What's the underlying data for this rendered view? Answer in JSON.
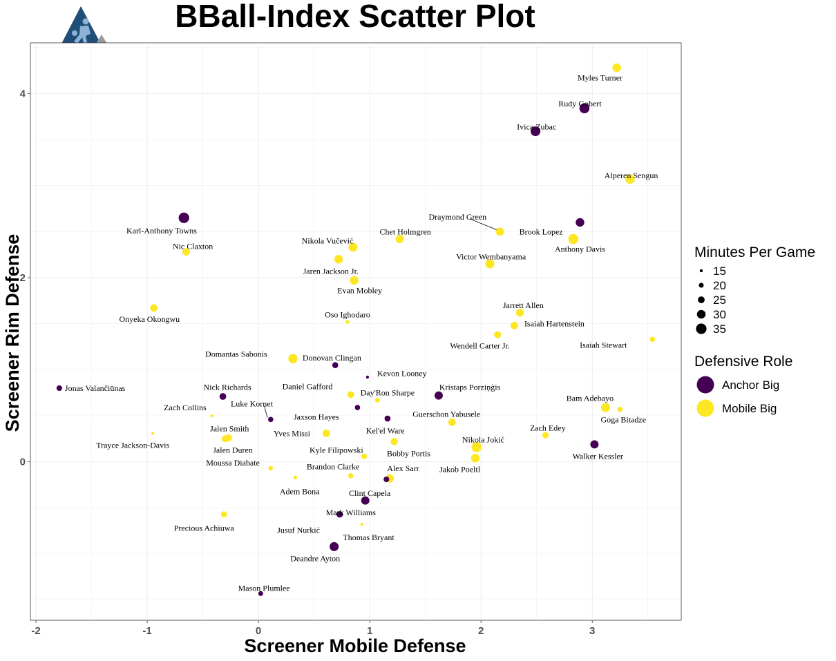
{
  "chart_data": {
    "type": "scatter",
    "title": "BBall-Index Scatter Plot",
    "xlabel": "Screener Mobile Defense",
    "ylabel": "Screener Rim Defense",
    "xlim": [
      -2.05,
      3.8
    ],
    "ylim": [
      -1.72,
      4.55
    ],
    "x_ticks": [
      -2,
      -1,
      0,
      1,
      2,
      3
    ],
    "y_ticks": [
      0,
      2,
      4
    ],
    "grid": true,
    "legend_position": "right",
    "colors": {
      "Anchor Big": "#440154",
      "Mobile Big": "#fde725"
    },
    "size_legend": {
      "title": "Minutes Per Game",
      "values": [
        15,
        20,
        25,
        30,
        35
      ]
    },
    "color_legend": {
      "title": "Defensive Role",
      "entries": [
        "Anchor Big",
        "Mobile Big"
      ]
    },
    "points": [
      {
        "name": "Myles Turner",
        "x": 3.22,
        "y": 4.28,
        "role": "Mobile Big",
        "mpg": 30
      },
      {
        "name": "Rudy Gobert",
        "x": 2.93,
        "y": 3.84,
        "role": "Anchor Big",
        "mpg": 34
      },
      {
        "name": "Ivica Zubac",
        "x": 2.49,
        "y": 3.59,
        "role": "Anchor Big",
        "mpg": 33
      },
      {
        "name": "Alperen Sengun",
        "x": 3.34,
        "y": 3.07,
        "role": "Mobile Big",
        "mpg": 32
      },
      {
        "name": "Karl-Anthony Towns",
        "x": -0.67,
        "y": 2.65,
        "role": "Anchor Big",
        "mpg": 35
      },
      {
        "name": "Brook Lopez",
        "x": 2.89,
        "y": 2.6,
        "role": "Anchor Big",
        "mpg": 30
      },
      {
        "name": "Draymond Green",
        "x": 2.17,
        "y": 2.5,
        "role": "Mobile Big",
        "mpg": 29
      },
      {
        "name": "Anthony Davis",
        "x": 2.83,
        "y": 2.42,
        "role": "Mobile Big",
        "mpg": 34
      },
      {
        "name": "Chet Holmgren",
        "x": 1.27,
        "y": 2.42,
        "role": "Mobile Big",
        "mpg": 29
      },
      {
        "name": "Nikola Vučević",
        "x": 0.85,
        "y": 2.33,
        "role": "Mobile Big",
        "mpg": 31
      },
      {
        "name": "Nic Claxton",
        "x": -0.65,
        "y": 2.28,
        "role": "Mobile Big",
        "mpg": 27
      },
      {
        "name": "Jaren Jackson Jr.",
        "x": 0.72,
        "y": 2.2,
        "role": "Mobile Big",
        "mpg": 30
      },
      {
        "name": "Victor Wembanyama",
        "x": 2.08,
        "y": 2.15,
        "role": "Mobile Big",
        "mpg": 31
      },
      {
        "name": "Evan Mobley",
        "x": 0.86,
        "y": 1.97,
        "role": "Mobile Big",
        "mpg": 30
      },
      {
        "name": "Onyeka Okongwu",
        "x": -0.94,
        "y": 1.67,
        "role": "Mobile Big",
        "mpg": 27
      },
      {
        "name": "Jarrett Allen",
        "x": 2.35,
        "y": 1.62,
        "role": "Mobile Big",
        "mpg": 28
      },
      {
        "name": "Oso Ighodaro",
        "x": 0.8,
        "y": 1.52,
        "role": "Mobile Big",
        "mpg": 17
      },
      {
        "name": "Isaiah Hartenstein",
        "x": 2.3,
        "y": 1.48,
        "role": "Mobile Big",
        "mpg": 27
      },
      {
        "name": "Wendell Carter Jr.",
        "x": 2.15,
        "y": 1.38,
        "role": "Mobile Big",
        "mpg": 26
      },
      {
        "name": "Isaiah Stewart",
        "x": 3.54,
        "y": 1.33,
        "role": "Mobile Big",
        "mpg": 21
      },
      {
        "name": "Donovan Clingan",
        "x": 0.31,
        "y": 1.12,
        "role": "Mobile Big",
        "mpg": 32
      },
      {
        "name": "Domantas Sabonis",
        "x": 0.69,
        "y": 1.05,
        "role": "Anchor Big",
        "mpg": 23
      },
      {
        "name": "Kevon Looney",
        "x": 0.98,
        "y": 0.92,
        "role": "Anchor Big",
        "mpg": 15
      },
      {
        "name": "Jonas Valančiūnas",
        "x": -1.79,
        "y": 0.8,
        "role": "Anchor Big",
        "mpg": 22
      },
      {
        "name": "Daniel Gafford",
        "x": 0.83,
        "y": 0.73,
        "role": "Mobile Big",
        "mpg": 25
      },
      {
        "name": "Kristaps Porziņģis",
        "x": 1.62,
        "y": 0.72,
        "role": "Anchor Big",
        "mpg": 29
      },
      {
        "name": "Nick Richards",
        "x": -0.32,
        "y": 0.71,
        "role": "Anchor Big",
        "mpg": 25
      },
      {
        "name": "Day'Ron Sharpe",
        "x": 1.07,
        "y": 0.67,
        "role": "Mobile Big",
        "mpg": 20
      },
      {
        "name": "Bam Adebayo",
        "x": 3.12,
        "y": 0.59,
        "role": "Mobile Big",
        "mpg": 31
      },
      {
        "name": "Jaxson Hayes",
        "x": 0.89,
        "y": 0.59,
        "role": "Anchor Big",
        "mpg": 21
      },
      {
        "name": "Goga Bitadze",
        "x": 3.25,
        "y": 0.57,
        "role": "Mobile Big",
        "mpg": 21
      },
      {
        "name": "Zach Collins",
        "x": -0.42,
        "y": 0.5,
        "role": "Mobile Big",
        "mpg": 15
      },
      {
        "name": "Kel'el Ware",
        "x": 1.16,
        "y": 0.47,
        "role": "Anchor Big",
        "mpg": 23
      },
      {
        "name": "Luke Kornet",
        "x": 0.11,
        "y": 0.46,
        "role": "Anchor Big",
        "mpg": 21
      },
      {
        "name": "Guerschon Yabusele",
        "x": 1.74,
        "y": 0.43,
        "role": "Mobile Big",
        "mpg": 27
      },
      {
        "name": "Trayce Jackson-Davis",
        "x": -0.95,
        "y": 0.31,
        "role": "Mobile Big",
        "mpg": 15
      },
      {
        "name": "Yves Missi",
        "x": 0.61,
        "y": 0.31,
        "role": "Mobile Big",
        "mpg": 27
      },
      {
        "name": "Zach Edey",
        "x": 2.58,
        "y": 0.29,
        "role": "Mobile Big",
        "mpg": 24
      },
      {
        "name": "Jalen Smith",
        "x": -0.27,
        "y": 0.26,
        "role": "Mobile Big",
        "mpg": 26
      },
      {
        "name": "Jalen Duren",
        "x": -0.3,
        "y": 0.25,
        "role": "Mobile Big",
        "mpg": 25
      },
      {
        "name": "Bobby Portis",
        "x": 1.22,
        "y": 0.22,
        "role": "Mobile Big",
        "mpg": 26
      },
      {
        "name": "Walker Kessler",
        "x": 3.02,
        "y": 0.19,
        "role": "Anchor Big",
        "mpg": 29
      },
      {
        "name": "Nikola Jokić",
        "x": 1.96,
        "y": 0.16,
        "role": "Mobile Big",
        "mpg": 34
      },
      {
        "name": "Kyle Filipowski",
        "x": 0.95,
        "y": 0.06,
        "role": "Mobile Big",
        "mpg": 22
      },
      {
        "name": "Jakob Poeltl",
        "x": 1.95,
        "y": 0.04,
        "role": "Mobile Big",
        "mpg": 30
      },
      {
        "name": "Moussa Diabate",
        "x": 0.11,
        "y": -0.07,
        "role": "Mobile Big",
        "mpg": 19
      },
      {
        "name": "Brandon Clarke",
        "x": 0.83,
        "y": -0.15,
        "role": "Mobile Big",
        "mpg": 21
      },
      {
        "name": "Adem Bona",
        "x": 0.33,
        "y": -0.17,
        "role": "Mobile Big",
        "mpg": 17
      },
      {
        "name": "Alex Sarr",
        "x": 1.18,
        "y": -0.18,
        "role": "Mobile Big",
        "mpg": 29
      },
      {
        "name": "Clint Capela",
        "x": 1.15,
        "y": -0.19,
        "role": "Anchor Big",
        "mpg": 22
      },
      {
        "name": "Deandre Ayton",
        "x": 0.96,
        "y": -0.42,
        "role": "Anchor Big",
        "mpg": 29
      },
      {
        "name": "Mark Williams",
        "x": 0.73,
        "y": -0.57,
        "role": "Anchor Big",
        "mpg": 24
      },
      {
        "name": "Precious Achiuwa",
        "x": -0.31,
        "y": -0.57,
        "role": "Mobile Big",
        "mpg": 23
      },
      {
        "name": "Jusuf Nurkić",
        "x": 0.93,
        "y": -0.68,
        "role": "Mobile Big",
        "mpg": 15
      },
      {
        "name": "Thomas Bryant",
        "x": 0.68,
        "y": -0.92,
        "role": "Anchor Big",
        "mpg": 31
      },
      {
        "name": "Mason Plumlee",
        "x": 0.02,
        "y": -1.43,
        "role": "Anchor Big",
        "mpg": 20
      }
    ],
    "labels": [
      {
        "text": "Myles Turner",
        "x": 3.07,
        "y": 4.17,
        "anchor": "middle"
      },
      {
        "text": "Rudy Gobert",
        "x": 2.89,
        "y": 3.89,
        "anchor": "middle"
      },
      {
        "text": "Ivica Zubac",
        "x": 2.5,
        "y": 3.64,
        "anchor": "middle"
      },
      {
        "text": "Alperen Sengun",
        "x": 3.35,
        "y": 3.11,
        "anchor": "middle"
      },
      {
        "text": "Karl-Anthony Towns",
        "x": -0.87,
        "y": 2.51,
        "anchor": "middle"
      },
      {
        "text": "Nic Claxton",
        "x": -0.59,
        "y": 2.34,
        "anchor": "middle"
      },
      {
        "text": "Draymond Green",
        "x": 1.79,
        "y": 2.66,
        "anchor": "middle",
        "leader_to": [
          2.14,
          2.52
        ]
      },
      {
        "text": "Brook Lopez",
        "x": 2.54,
        "y": 2.5,
        "anchor": "middle"
      },
      {
        "text": "Anthony Davis",
        "x": 2.89,
        "y": 2.31,
        "anchor": "middle"
      },
      {
        "text": "Chet Holmgren",
        "x": 1.32,
        "y": 2.5,
        "anchor": "middle"
      },
      {
        "text": "Nikola Vučević",
        "x": 0.62,
        "y": 2.4,
        "anchor": "middle"
      },
      {
        "text": "Jaren Jackson Jr.",
        "x": 0.65,
        "y": 2.07,
        "anchor": "middle"
      },
      {
        "text": "Victor Wembanyama",
        "x": 2.09,
        "y": 2.23,
        "anchor": "middle"
      },
      {
        "text": "Evan Mobley",
        "x": 0.91,
        "y": 1.86,
        "anchor": "middle"
      },
      {
        "text": "Onyeka Okongwu",
        "x": -0.98,
        "y": 1.55,
        "anchor": "middle"
      },
      {
        "text": "Jarrett Allen",
        "x": 2.38,
        "y": 1.7,
        "anchor": "middle"
      },
      {
        "text": "Oso Ighodaro",
        "x": 0.8,
        "y": 1.6,
        "anchor": "middle"
      },
      {
        "text": "Isaiah Hartenstein",
        "x": 2.66,
        "y": 1.5,
        "anchor": "middle"
      },
      {
        "text": "Wendell Carter Jr.",
        "x": 1.99,
        "y": 1.26,
        "anchor": "middle"
      },
      {
        "text": "Isaiah Stewart",
        "x": 3.1,
        "y": 1.27,
        "anchor": "middle"
      },
      {
        "text": "Domantas Sabonis",
        "x": -0.2,
        "y": 1.17,
        "anchor": "middle"
      },
      {
        "text": "Donovan Clingan",
        "x": 0.66,
        "y": 1.13,
        "anchor": "middle"
      },
      {
        "text": "Kevon Looney",
        "x": 1.29,
        "y": 0.96,
        "anchor": "middle"
      },
      {
        "text": "Jonas Valančiūnas",
        "x": -1.74,
        "y": 0.8,
        "anchor": "start"
      },
      {
        "text": "Nick Richards",
        "x": -0.28,
        "y": 0.81,
        "anchor": "middle"
      },
      {
        "text": "Daniel Gafford",
        "x": 0.44,
        "y": 0.82,
        "anchor": "middle"
      },
      {
        "text": "Day'Ron Sharpe",
        "x": 1.16,
        "y": 0.75,
        "anchor": "middle"
      },
      {
        "text": "Kristaps Porziņģis",
        "x": 1.9,
        "y": 0.81,
        "anchor": "middle"
      },
      {
        "text": "Luke Kornet",
        "x": -0.06,
        "y": 0.63,
        "anchor": "middle",
        "leader_to": [
          0.08,
          0.48
        ]
      },
      {
        "text": "Zach Collins",
        "x": -0.66,
        "y": 0.59,
        "anchor": "middle"
      },
      {
        "text": "Bam Adebayo",
        "x": 2.98,
        "y": 0.69,
        "anchor": "middle"
      },
      {
        "text": "Goga Bitadze",
        "x": 3.28,
        "y": 0.46,
        "anchor": "middle"
      },
      {
        "text": "Jaxson Hayes",
        "x": 0.52,
        "y": 0.49,
        "anchor": "middle"
      },
      {
        "text": "Guerschon Yabusele",
        "x": 1.69,
        "y": 0.52,
        "anchor": "middle"
      },
      {
        "text": "Kel'el Ware",
        "x": 1.14,
        "y": 0.34,
        "anchor": "middle"
      },
      {
        "text": "Yves Missi",
        "x": 0.3,
        "y": 0.31,
        "anchor": "middle"
      },
      {
        "text": "Jalen Smith",
        "x": -0.26,
        "y": 0.36,
        "anchor": "middle"
      },
      {
        "text": "Zach Edey",
        "x": 2.6,
        "y": 0.37,
        "anchor": "middle"
      },
      {
        "text": "Trayce Jackson-Davis",
        "x": -1.13,
        "y": 0.18,
        "anchor": "middle"
      },
      {
        "text": "Nikola Jokić",
        "x": 2.02,
        "y": 0.24,
        "anchor": "middle"
      },
      {
        "text": "Jalen Duren",
        "x": -0.23,
        "y": 0.13,
        "anchor": "middle"
      },
      {
        "text": "Kyle Filipowski",
        "x": 0.7,
        "y": 0.13,
        "anchor": "middle"
      },
      {
        "text": "Bobby Portis",
        "x": 1.35,
        "y": 0.09,
        "anchor": "middle"
      },
      {
        "text": "Walker Kessler",
        "x": 3.05,
        "y": 0.06,
        "anchor": "middle"
      },
      {
        "text": "Moussa Diabate",
        "x": -0.23,
        "y": -0.01,
        "anchor": "middle"
      },
      {
        "text": "Jakob Poeltl",
        "x": 1.81,
        "y": -0.08,
        "anchor": "middle"
      },
      {
        "text": "Brandon Clarke",
        "x": 0.67,
        "y": -0.05,
        "anchor": "middle"
      },
      {
        "text": "Alex Sarr",
        "x": 1.3,
        "y": -0.07,
        "anchor": "middle"
      },
      {
        "text": "Adem Bona",
        "x": 0.37,
        "y": -0.32,
        "anchor": "middle"
      },
      {
        "text": "Clint Capela",
        "x": 1.0,
        "y": -0.34,
        "anchor": "middle"
      },
      {
        "text": "Mark Williams",
        "x": 0.83,
        "y": -0.55,
        "anchor": "middle"
      },
      {
        "text": "Precious Achiuwa",
        "x": -0.49,
        "y": -0.72,
        "anchor": "middle"
      },
      {
        "text": "Jusuf Nurkić",
        "x": 0.36,
        "y": -0.74,
        "anchor": "middle"
      },
      {
        "text": "Thomas Bryant",
        "x": 0.99,
        "y": -0.82,
        "anchor": "middle"
      },
      {
        "text": "Deandre Ayton",
        "x": 0.51,
        "y": -1.05,
        "anchor": "middle"
      },
      {
        "text": "Mason Plumlee",
        "x": 0.05,
        "y": -1.37,
        "anchor": "middle"
      }
    ]
  }
}
